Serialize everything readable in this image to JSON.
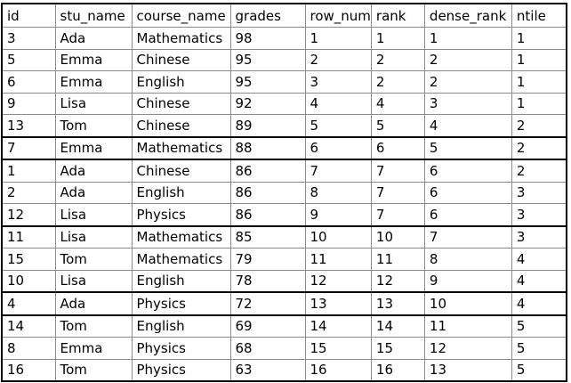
{
  "table": {
    "columns": [
      "id",
      "stu_name",
      "course_name",
      "grades",
      "row_num",
      "rank",
      "dense_rank",
      "ntile"
    ],
    "rows": [
      [
        "3",
        "Ada",
        "Mathematics",
        "98",
        "1",
        "1",
        "1",
        "1"
      ],
      [
        "5",
        "Emma",
        "Chinese",
        "95",
        "2",
        "2",
        "2",
        "1"
      ],
      [
        "6",
        "Emma",
        "English",
        "95",
        "3",
        "2",
        "2",
        "1"
      ],
      [
        "9",
        "Lisa",
        "Chinese",
        "92",
        "4",
        "4",
        "3",
        "1"
      ],
      [
        "13",
        "Tom",
        "Chinese",
        "89",
        "5",
        "5",
        "4",
        "2"
      ],
      [
        "7",
        "Emma",
        "Mathematics",
        "88",
        "6",
        "6",
        "5",
        "2"
      ],
      [
        "1",
        "Ada",
        "Chinese",
        "86",
        "7",
        "7",
        "6",
        "2"
      ],
      [
        "2",
        "Ada",
        "English",
        "86",
        "8",
        "7",
        "6",
        "3"
      ],
      [
        "12",
        "Lisa",
        "Physics",
        "86",
        "9",
        "7",
        "6",
        "3"
      ],
      [
        "11",
        "Lisa",
        "Mathematics",
        "85",
        "10",
        "10",
        "7",
        "3"
      ],
      [
        "15",
        "Tom",
        "Mathematics",
        "79",
        "11",
        "11",
        "8",
        "4"
      ],
      [
        "10",
        "Lisa",
        "English",
        "78",
        "12",
        "12",
        "9",
        "4"
      ],
      [
        "4",
        "Ada",
        "Physics",
        "72",
        "13",
        "13",
        "10",
        "4"
      ],
      [
        "14",
        "Tom",
        "English",
        "69",
        "14",
        "14",
        "11",
        "5"
      ],
      [
        "8",
        "Emma",
        "Physics",
        "68",
        "15",
        "15",
        "12",
        "5"
      ],
      [
        "16",
        "Tom",
        "Physics",
        "63",
        "16",
        "16",
        "13",
        "5"
      ]
    ]
  }
}
